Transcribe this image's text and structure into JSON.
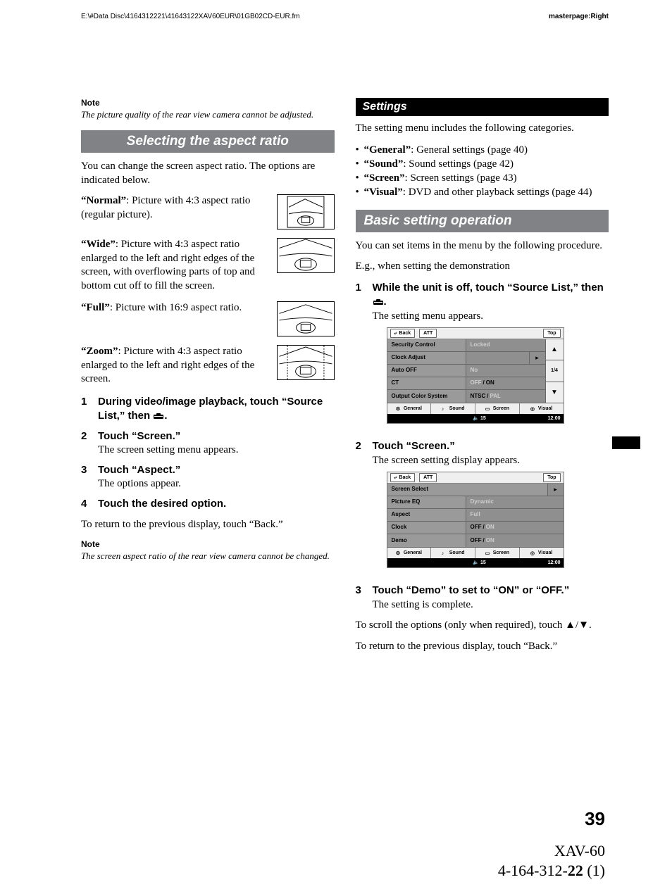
{
  "header": {
    "path": "E:\\#Data Disc\\4164312221\\41643122XAV60EUR\\01GB02CD-EUR.fm",
    "masterpage": "masterpage:Right"
  },
  "left": {
    "note1_label": "Note",
    "note1_text": "The picture quality of the rear view camera cannot be adjusted.",
    "h_aspect": "Selecting the aspect ratio",
    "p_intro": "You can change the screen aspect ratio. The options are indicated below.",
    "opt_normal_label": "“Normal”",
    "opt_normal_text": ": Picture with 4:3 aspect ratio (regular picture).",
    "opt_wide_label": "“Wide”",
    "opt_wide_text": ": Picture with 4:3 aspect ratio enlarged to the left and right edges of the screen, with overflowing parts of top and bottom cut off to fill the screen.",
    "opt_full_label": "“Full”",
    "opt_full_text": ": Picture with 16:9 aspect ratio.",
    "opt_zoom_label": "“Zoom”",
    "opt_zoom_text": ": Picture with 4:3 aspect ratio enlarged to the left and right edges of the screen.",
    "step1": "During video/image playback, touch “Source List,” then ",
    "step1_tail": ".",
    "step2": "Touch “Screen.”",
    "step2_sub": "The screen setting menu appears.",
    "step3": "Touch “Aspect.”",
    "step3_sub": "The options appear.",
    "step4": "Touch the desired option.",
    "p_return": "To return to the previous display, touch “Back.”",
    "note2_label": "Note",
    "note2_text": "The screen aspect ratio of the rear view camera cannot be changed."
  },
  "right": {
    "h_settings": "Settings",
    "p_settings_intro": "The setting menu includes the following categories.",
    "bullets": [
      {
        "label": "“General”",
        "text": ": General settings (page 40)"
      },
      {
        "label": "“Sound”",
        "text": ": Sound settings (page 42)"
      },
      {
        "label": "“Screen”",
        "text": ": Screen settings (page 43)"
      },
      {
        "label": "“Visual”",
        "text": ": DVD and other playback settings (page 44)"
      }
    ],
    "h_basic": "Basic setting operation",
    "p_basic_intro": "You can set items in the menu by the following procedure.",
    "p_eg": "E.g., when setting the demonstration",
    "step1": "While the unit is off, touch “Source List,” then ",
    "step1_tail": ".",
    "step1_sub": "The setting menu appears.",
    "step2": "Touch “Screen.”",
    "step2_sub": "The screen setting display appears.",
    "step3": "Touch “Demo” to set to “ON” or “OFF.”",
    "step3_sub": "The setting is complete.",
    "p_scroll": "To scroll the options (only when required), touch ▲/▼.",
    "p_return": "To return to the previous display, touch “Back.”"
  },
  "ui_common": {
    "back": "Back",
    "att": "ATT",
    "top": "Top",
    "page": "1/4",
    "tabs": [
      "General",
      "Sound",
      "Screen",
      "Visual"
    ],
    "status_left": "15",
    "status_right": "12:00"
  },
  "ui1": {
    "rows": [
      {
        "label": "Security Control",
        "value_dim": "Locked"
      },
      {
        "label": "Clock Adjust",
        "arrow": true
      },
      {
        "label": "Auto OFF",
        "value_dim": "No"
      },
      {
        "label": "CT",
        "off_on": true,
        "active": "ON"
      },
      {
        "label": "Output Color System",
        "ntsc_pal": true,
        "active": "NTSC"
      }
    ]
  },
  "ui2": {
    "rows": [
      {
        "label": "Screen Select",
        "arrow": true,
        "full": true
      },
      {
        "label": "Picture EQ",
        "value_dim": "Dynamic"
      },
      {
        "label": "Aspect",
        "value_dim": "Full"
      },
      {
        "label": "Clock",
        "off_on": true,
        "active": "OFF"
      },
      {
        "label": "Demo",
        "off_on": true,
        "active": "OFF"
      }
    ]
  },
  "footer": {
    "page": "39",
    "model": "XAV-60",
    "docnum_pre": "4-164-312-",
    "docnum_bold": "22",
    "docnum_post": " (1)"
  }
}
